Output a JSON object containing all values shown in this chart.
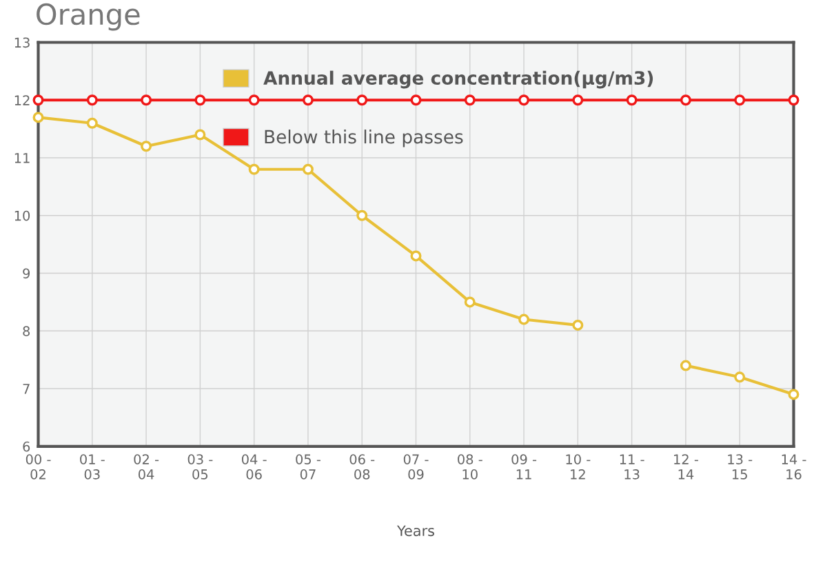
{
  "chart_data": {
    "type": "line",
    "title": "Orange",
    "xlabel": "Years",
    "categories": [
      "00 -\n02",
      "01 -\n03",
      "02 -\n04",
      "03 -\n05",
      "04 -\n06",
      "05 -\n07",
      "06 -\n08",
      "07 -\n09",
      "08 -\n10",
      "09 -\n11",
      "10 -\n12",
      "11 -\n13",
      "12 -\n14",
      "13 -\n15",
      "14 -\n16"
    ],
    "series": [
      {
        "name": "Annual average concentration(µg/m3)",
        "color": "#e8c038",
        "values": [
          11.7,
          11.6,
          11.2,
          11.4,
          10.8,
          10.8,
          10.0,
          9.3,
          8.5,
          8.2,
          8.1,
          null,
          7.4,
          7.2,
          6.9
        ]
      },
      {
        "name": "Below this line passes",
        "color": "#f01818",
        "values": [
          12,
          12,
          12,
          12,
          12,
          12,
          12,
          12,
          12,
          12,
          12,
          12,
          12,
          12,
          12
        ]
      }
    ],
    "ylim": [
      6,
      13
    ],
    "yticks": [
      6,
      7,
      8,
      9,
      10,
      11,
      12,
      13
    ],
    "grid": true,
    "legend": "top right",
    "marker": "circle",
    "line_style": "solid"
  }
}
